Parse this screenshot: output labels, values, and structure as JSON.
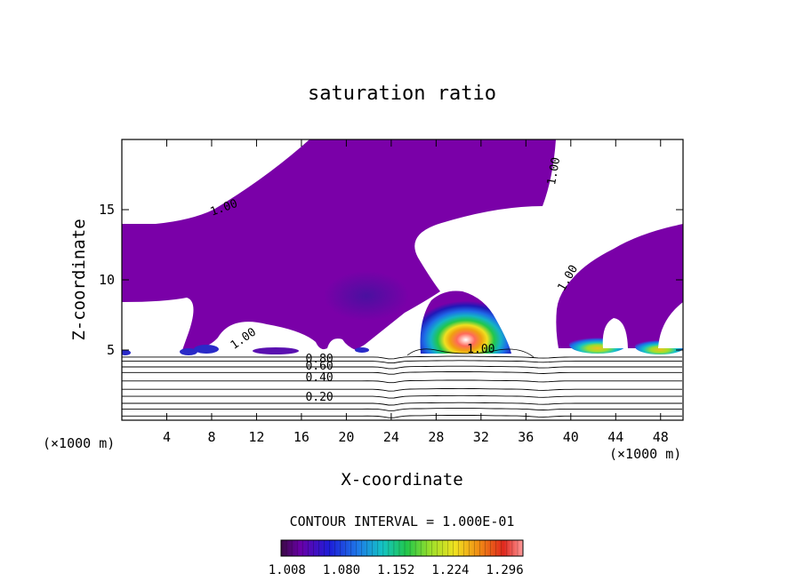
{
  "chart_data": {
    "type": "contour",
    "title": "saturation ratio",
    "xlabel": "X-coordinate",
    "ylabel": "Z-coordinate",
    "x_unit": "(×1000 m)",
    "x_unit_repeat": "(×1000 m)",
    "xlim": [
      0,
      50
    ],
    "ylim": [
      0,
      20
    ],
    "x_ticks": [
      4,
      8,
      12,
      16,
      20,
      24,
      28,
      32,
      36,
      40,
      44,
      48
    ],
    "y_ticks": [
      5,
      10,
      15
    ],
    "contour_interval_text": "CONTOUR INTERVAL = 1.000E-01",
    "colorbar": {
      "range": [
        1.0,
        1.32
      ],
      "ticks": [
        "1.008",
        "1.080",
        "1.152",
        "1.224",
        "1.296"
      ]
    },
    "contour_labels": [
      {
        "text": "1.00",
        "x": 9.2,
        "y": 14.9,
        "rotate": -20
      },
      {
        "text": "1.00",
        "x": 38.8,
        "y": 17.7,
        "rotate": -80
      },
      {
        "text": "1.00",
        "x": 40.0,
        "y": 10.0,
        "rotate": -60
      },
      {
        "text": "1.00",
        "x": 11.0,
        "y": 5.6,
        "rotate": -35
      },
      {
        "text": "1.00",
        "x": 32.0,
        "y": 4.8,
        "rotate": 0
      },
      {
        "text": "0.80",
        "x": 17.6,
        "y": 4.1,
        "rotate": 0
      },
      {
        "text": "0.60",
        "x": 17.6,
        "y": 3.6,
        "rotate": 0
      },
      {
        "text": "0.40",
        "x": 17.6,
        "y": 2.8,
        "rotate": 0
      },
      {
        "text": "0.20",
        "x": 17.6,
        "y": 1.4,
        "rotate": 0
      }
    ],
    "isolines_below_cloud": [
      0.3,
      0.8,
      1.2,
      1.7,
      2.2,
      2.8,
      3.4,
      3.8,
      4.2,
      4.5
    ],
    "regions": [
      {
        "name": "upper-left supersaturated layer",
        "level": 1.004
      },
      {
        "name": "core updraft cloud",
        "x": 30,
        "z": 5.5,
        "max_level": 1.32
      },
      {
        "name": "right cloud cells",
        "x": 46,
        "z": 5.2,
        "max_level": 1.2
      }
    ]
  }
}
